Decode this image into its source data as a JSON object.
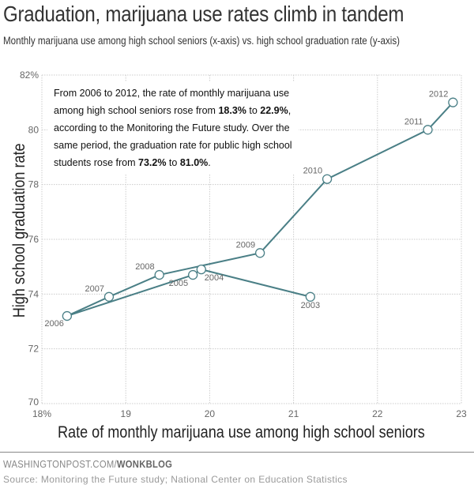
{
  "chart_data": {
    "type": "line",
    "title": "Graduation, marijuana use rates climb in tandem",
    "subtitle": "Monthly marijuana use among high school seniors (x-axis) vs. high school graduation rate (y-axis)",
    "xlabel": "Rate of monthly marijuana use among high school seniors",
    "ylabel": "High school graduation rate",
    "xlim": [
      18,
      23
    ],
    "ylim": [
      70,
      82
    ],
    "x_ticks": [
      "18%",
      "19",
      "20",
      "21",
      "22",
      "23"
    ],
    "y_ticks": [
      "82%",
      "80",
      "78",
      "76",
      "74",
      "72",
      "70"
    ],
    "grid": true,
    "line_color": "#4a7f86",
    "points": [
      {
        "label": "2003",
        "x": 21.2,
        "y": 73.9
      },
      {
        "label": "2004",
        "x": 19.9,
        "y": 74.9
      },
      {
        "label": "2005",
        "x": 19.8,
        "y": 74.7
      },
      {
        "label": "2006",
        "x": 18.3,
        "y": 73.2
      },
      {
        "label": "2007",
        "x": 18.8,
        "y": 73.9
      },
      {
        "label": "2008",
        "x": 19.4,
        "y": 74.7
      },
      {
        "label": "2009",
        "x": 20.6,
        "y": 75.5
      },
      {
        "label": "2010",
        "x": 21.4,
        "y": 78.2
      },
      {
        "label": "2011",
        "x": 22.6,
        "y": 80.0
      },
      {
        "label": "2012",
        "x": 22.9,
        "y": 81.0
      }
    ],
    "annotation": {
      "parts": [
        {
          "t": "From 2006 to 2012, the rate of monthly marijuana use among high school seniors rose from ",
          "b": false
        },
        {
          "t": "18.3%",
          "b": true
        },
        {
          "t": " to ",
          "b": false
        },
        {
          "t": "22.9%",
          "b": true
        },
        {
          "t": ", according to the Monitoring the Future study. Over the same period, the graduation rate for public high school students rose from ",
          "b": false
        },
        {
          "t": "73.2%",
          "b": true
        },
        {
          "t": " to ",
          "b": false
        },
        {
          "t": "81.0%",
          "b": true
        },
        {
          "t": ".",
          "b": false
        }
      ]
    }
  },
  "footer": {
    "credit_prefix": "WASHINGTONPOST.COM/",
    "credit_bold": "WONKBLOG",
    "source": "Source: Monitoring the Future study; National Center on Education Statistics"
  }
}
